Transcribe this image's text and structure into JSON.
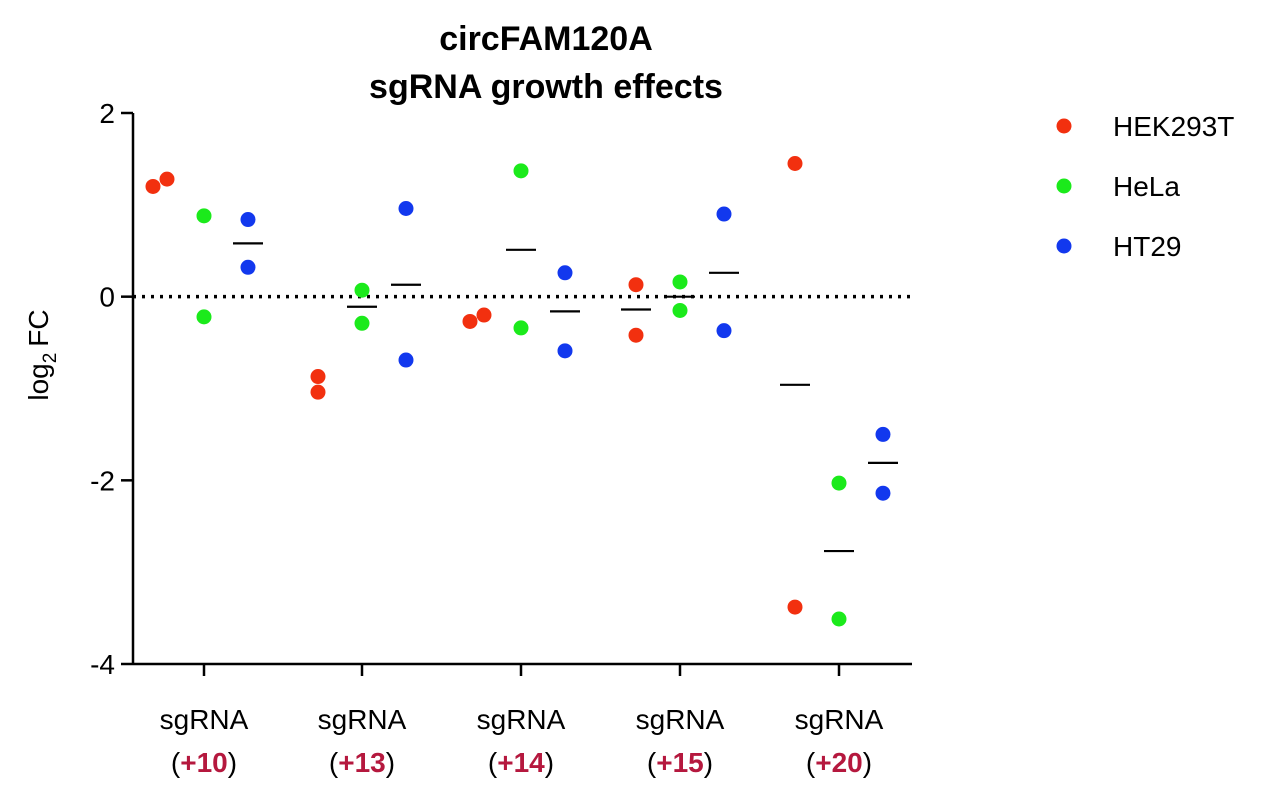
{
  "chart_data": {
    "type": "scatter",
    "title_line1": "circFAM120A",
    "title_line2": "sgRNA growth effects",
    "ylabel_main": "log",
    "ylabel_sub": "2",
    "ylabel_unit": "FC",
    "ylim": [
      -4,
      2
    ],
    "yticks": [
      {
        "value": 2,
        "label": "2"
      },
      {
        "value": 0,
        "label": "0"
      },
      {
        "value": -2,
        "label": "-2"
      },
      {
        "value": -4,
        "label": "-4"
      }
    ],
    "reference_line": 0,
    "legend_position": "right",
    "categories": [
      {
        "name": "sgRNA",
        "open": "(",
        "num": "+10",
        "close": ")"
      },
      {
        "name": "sgRNA",
        "open": "(",
        "num": "+13",
        "close": ")"
      },
      {
        "name": "sgRNA",
        "open": "(",
        "num": "+14",
        "close": ")"
      },
      {
        "name": "sgRNA",
        "open": "(",
        "num": "+15",
        "close": ")"
      },
      {
        "name": "sgRNA",
        "open": "(",
        "num": "+20",
        "close": ")"
      }
    ],
    "category_number_color": "#b5183e",
    "series": [
      {
        "name": "HEK293T",
        "color": "#f2300f",
        "points": [
          [
            1.2,
            1.28
          ],
          [
            -0.87,
            -1.04
          ],
          [
            -0.27,
            -0.2
          ],
          [
            0.13,
            -0.42
          ],
          [
            1.45,
            -3.38
          ]
        ],
        "means": [
          null,
          null,
          null,
          -0.14,
          -0.96
        ]
      },
      {
        "name": "HeLa",
        "color": "#1bea1b",
        "points": [
          [
            0.88,
            -0.22
          ],
          [
            0.07,
            -0.29
          ],
          [
            1.37,
            -0.34
          ],
          [
            0.16,
            -0.15
          ],
          [
            -2.03,
            -3.51
          ]
        ],
        "means": [
          null,
          -0.11,
          0.51,
          0.0,
          -2.77
        ]
      },
      {
        "name": "HT29",
        "color": "#1238ee",
        "points": [
          [
            0.84,
            0.32
          ],
          [
            0.96,
            -0.69
          ],
          [
            0.26,
            -0.59
          ],
          [
            0.9,
            -0.37
          ],
          [
            -1.5,
            -2.14
          ]
        ],
        "means": [
          0.58,
          0.13,
          -0.16,
          0.26,
          -1.81
        ]
      }
    ]
  }
}
